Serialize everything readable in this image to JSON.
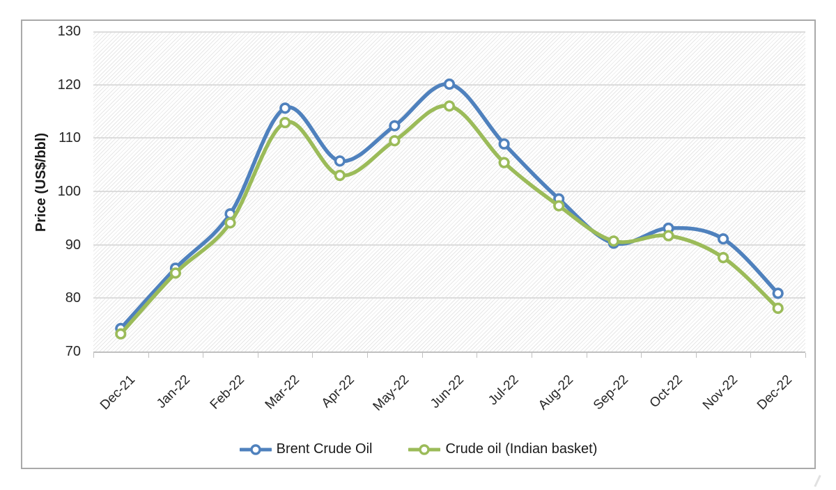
{
  "chart_data": {
    "type": "line",
    "title": "",
    "xlabel": "",
    "ylabel": "Price (US$/bbl)",
    "categories": [
      "Dec-21",
      "Jan-22",
      "Feb-22",
      "Mar-22",
      "Apr-22",
      "May-22",
      "Jun-22",
      "Jul-22",
      "Aug-22",
      "Sep-22",
      "Oct-22",
      "Nov-22",
      "Dec-22"
    ],
    "series": [
      {
        "name": "Brent Crude Oil",
        "color": "#4F81BD",
        "values": [
          74.3,
          85.6,
          95.8,
          115.6,
          105.7,
          112.3,
          120.1,
          108.9,
          98.6,
          90.3,
          93.1,
          91.1,
          80.9
        ]
      },
      {
        "name": "Crude oil (Indian basket)",
        "color": "#9BBB59",
        "values": [
          73.3,
          84.7,
          94.1,
          112.9,
          103.0,
          109.5,
          116.0,
          105.4,
          97.3,
          90.7,
          91.7,
          87.6,
          78.1
        ]
      }
    ],
    "ylim": [
      70,
      130
    ],
    "yticks": [
      70,
      80,
      90,
      100,
      110,
      120,
      130
    ],
    "grid": "horizontal",
    "legend_position": "bottom",
    "plot_background": "diagonal-hatch",
    "marker": "open-circle",
    "line_style": "smooth"
  },
  "style": {
    "grid_color": "#dcdcdc",
    "axis_color": "#bfbfbf",
    "frame_color": "#a9a9a9",
    "text_color": "#262626"
  }
}
